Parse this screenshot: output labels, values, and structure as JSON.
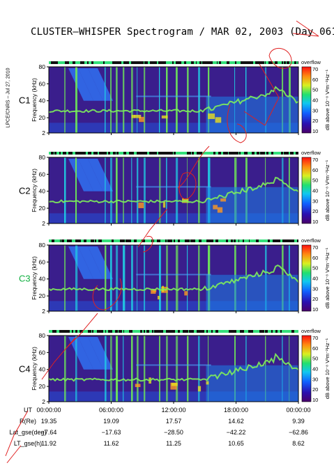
{
  "title": "CLUSTER–WHISPER Spectrogram / MAR 02, 2003 (Day 061)",
  "side_label": "LPCE/CNRS – Jul 27, 2010",
  "colors": {
    "bar_green": "#35e07a",
    "bar_black": "#111111",
    "annot": "#e02020"
  },
  "chart_data": {
    "type": "heatmap",
    "title": "CLUSTER–WHISPER Spectrogram / MAR 02, 2003 (Day 061)",
    "ylabel": "Frequency (kHz)",
    "ylim": [
      2,
      80
    ],
    "yticks": [
      2,
      20,
      40,
      60,
      80
    ],
    "colorbar_label": "dB above 10⁻⁸ V²m⁻²Hz⁻¹",
    "colorbar_header": "overflow",
    "colorbar_ticks": [
      10,
      20,
      30,
      40,
      50,
      60,
      70
    ],
    "panels": [
      {
        "name": "C1",
        "label_color": "#000000"
      },
      {
        "name": "C2",
        "label_color": "#000000"
      },
      {
        "name": "C3",
        "label_color": "#10b040"
      },
      {
        "name": "C4",
        "label_color": "#000000"
      }
    ],
    "x_ticks": [
      "00:00:00",
      "06:00:00",
      "12:00:00",
      "18:00:00",
      "00:00:00"
    ],
    "ephemeris": [
      {
        "label": "UT",
        "values": [
          "00:00:00",
          "06:00:00",
          "12:00:00",
          "18:00:00",
          "00:00:00"
        ]
      },
      {
        "label": "R(Re)",
        "values": [
          "19.35",
          "19.09",
          "17.57",
          "14.62",
          "9.39"
        ]
      },
      {
        "label": "Lat_gse(deg)",
        "values": [
          "−7.64",
          "−17.63",
          "−28.50",
          "−42.22",
          "−62.86"
        ]
      },
      {
        "label": "LT_gse(h)",
        "values": [
          "11.92",
          "11.62",
          "11.25",
          "10.65",
          "8.62"
        ]
      }
    ]
  }
}
